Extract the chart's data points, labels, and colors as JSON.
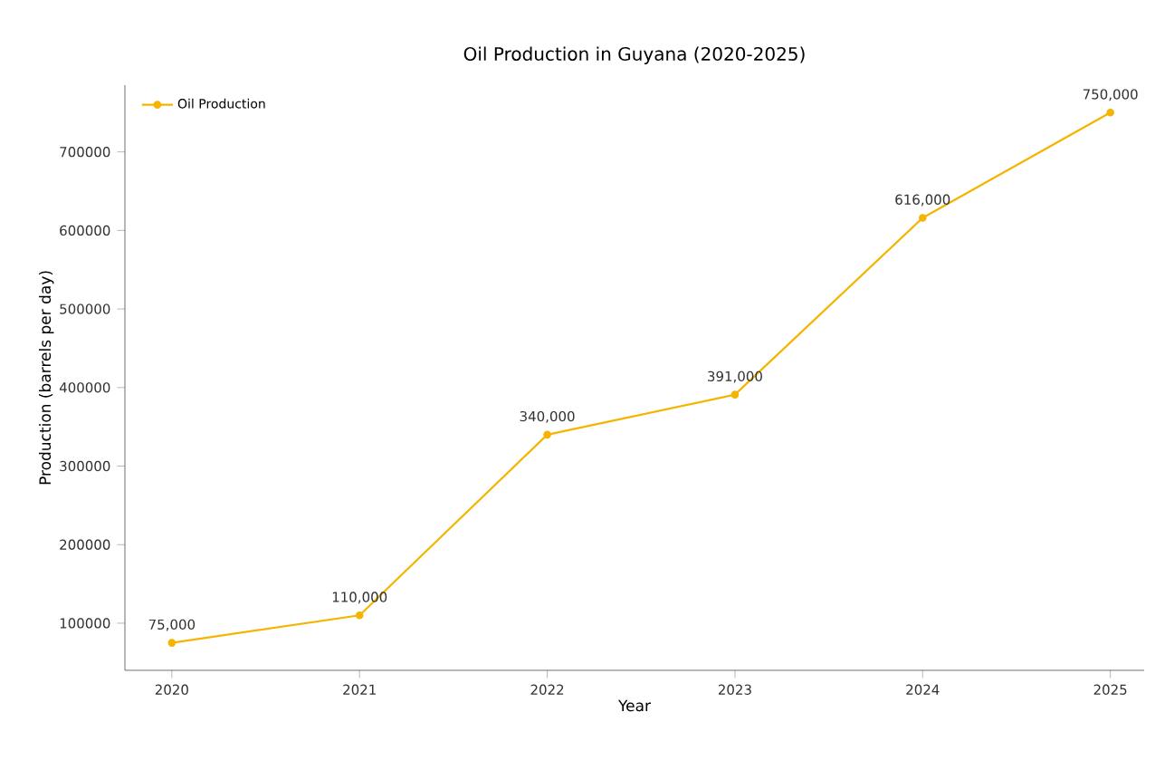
{
  "chart_data": {
    "type": "line",
    "title": "Oil Production in Guyana (2020-2025)",
    "xlabel": "Year",
    "ylabel": "Production (barrels per day)",
    "x": [
      2020,
      2021,
      2022,
      2023,
      2024,
      2025
    ],
    "series": [
      {
        "name": "Oil Production",
        "color": "#f5b400",
        "values": [
          75000,
          110000,
          340000,
          391000,
          616000,
          750000
        ],
        "value_labels": [
          "75,000",
          "110,000",
          "340,000",
          "391,000",
          "616,000",
          "750,000"
        ]
      }
    ],
    "xlim": [
      2019.75,
      2025.18
    ],
    "xticks": [
      2020,
      2021,
      2022,
      2023,
      2024,
      2025
    ],
    "ylim": [
      40000,
      785000
    ],
    "yticks": [
      100000,
      200000,
      300000,
      400000,
      500000,
      600000,
      700000
    ],
    "grid": false,
    "legend": "top left",
    "marker": "circle",
    "line_style": "solid"
  }
}
